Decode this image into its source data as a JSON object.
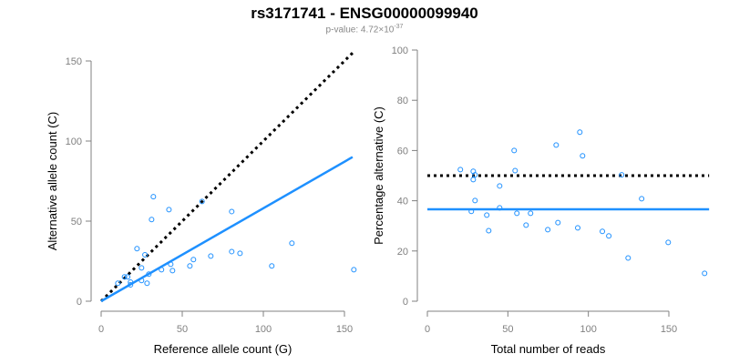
{
  "title": "rs3171741 - ENSG00000099940",
  "subtitle": {
    "label": "p-value: 4.72×10",
    "exponent": "-37"
  },
  "colors": {
    "points": "#1E90FF",
    "fit": "#1E90FF",
    "reference": "#000000",
    "axis": "#808080"
  },
  "chart_data": [
    {
      "type": "scatter",
      "title": "",
      "xlabel": "Reference allele count (G)",
      "ylabel": "Alternative allele count (C)",
      "xlim": [
        0,
        150
      ],
      "ylim": [
        0,
        150
      ],
      "xticks": [
        0,
        50,
        100,
        150
      ],
      "yticks": [
        0,
        50,
        100,
        150
      ],
      "points": [
        [
          32.2,
          65.3
        ],
        [
          41.8,
          57.2
        ],
        [
          31.1,
          51
        ],
        [
          62.2,
          62.3
        ],
        [
          80.5,
          56
        ],
        [
          22.1,
          32.8
        ],
        [
          27,
          29
        ],
        [
          24.9,
          20.8
        ],
        [
          117.6,
          36.2
        ],
        [
          80.5,
          31
        ],
        [
          85.6,
          29.9
        ],
        [
          67.6,
          28.2
        ],
        [
          56.9,
          26
        ],
        [
          42.9,
          23.1
        ],
        [
          37.2,
          19.7
        ],
        [
          44,
          19.1
        ],
        [
          54.7,
          22
        ],
        [
          105.2,
          22
        ],
        [
          155.8,
          19.7
        ],
        [
          29.4,
          16.9
        ],
        [
          24.9,
          12.9
        ],
        [
          28.3,
          11.2
        ],
        [
          18.1,
          11.9
        ],
        [
          18.1,
          10.2
        ],
        [
          14.4,
          15.2
        ],
        [
          16.3,
          15.2
        ],
        [
          10.3,
          11.2
        ]
      ],
      "lines": [
        {
          "name": "reference",
          "style": "dotted",
          "x": [
            0,
            155
          ],
          "y": [
            0,
            155
          ]
        },
        {
          "name": "fit",
          "style": "solid",
          "x": [
            0,
            155
          ],
          "y": [
            0,
            90
          ]
        }
      ]
    },
    {
      "type": "scatter",
      "title": "",
      "xlabel": "Total number of reads",
      "ylabel": "Percentage alternative (C)",
      "xlim": [
        0,
        175
      ],
      "ylim": [
        0,
        100
      ],
      "xticks": [
        0,
        50,
        100,
        150
      ],
      "yticks": [
        0,
        20,
        40,
        60,
        80,
        100
      ],
      "points": [
        [
          94.7,
          67.3
        ],
        [
          80,
          62.2
        ],
        [
          53.9,
          60
        ],
        [
          96.4,
          57.9
        ],
        [
          20.5,
          52.4
        ],
        [
          28.5,
          51.7
        ],
        [
          29.6,
          50.3
        ],
        [
          54.5,
          52
        ],
        [
          120.7,
          50.3
        ],
        [
          28.5,
          48.4
        ],
        [
          44.9,
          45.9
        ],
        [
          133.1,
          40.8
        ],
        [
          29.6,
          40.1
        ],
        [
          44.9,
          37.2
        ],
        [
          27.3,
          35.8
        ],
        [
          36.9,
          34.3
        ],
        [
          55.6,
          35
        ],
        [
          64.1,
          35
        ],
        [
          61.3,
          30.3
        ],
        [
          81.1,
          31.3
        ],
        [
          38.1,
          28.1
        ],
        [
          74.8,
          28.5
        ],
        [
          93.4,
          29.2
        ],
        [
          108.7,
          27.8
        ],
        [
          112.7,
          26
        ],
        [
          149.6,
          23.4
        ],
        [
          124.7,
          17.2
        ],
        [
          172.2,
          11.1
        ]
      ],
      "lines": [
        {
          "name": "reference",
          "style": "dotted",
          "x": [
            0,
            175
          ],
          "y": [
            50,
            50
          ]
        },
        {
          "name": "fit",
          "style": "solid",
          "x": [
            0,
            175
          ],
          "y": [
            36.6,
            36.6
          ]
        }
      ]
    }
  ]
}
